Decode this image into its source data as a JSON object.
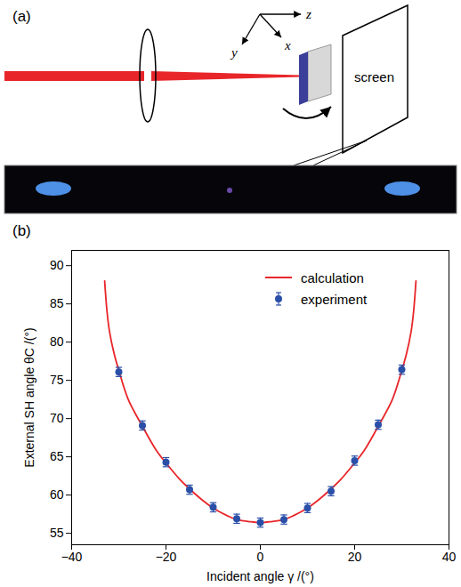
{
  "diagram": {
    "panel_label": "(a)",
    "axes": [
      "x",
      "y",
      "z"
    ],
    "screen_label": "screen"
  },
  "chart_data": {
    "type": "scatter",
    "panel_label": "(b)",
    "x_label": "Incident angle γ /(°)",
    "y_label": "External SH angle θC /(°)",
    "xlim": [
      -40,
      40
    ],
    "xticks": [
      -40,
      -20,
      0,
      20,
      40
    ],
    "ylim": [
      53.5,
      92
    ],
    "yticks": [
      55,
      60,
      65,
      70,
      75,
      80,
      85,
      90
    ],
    "legend": "top-right",
    "series": [
      {
        "name": "calculation",
        "type": "line",
        "color": "#e8262a",
        "x": [
          -33,
          -32.5,
          -32,
          -31,
          -30,
          -28,
          -25,
          -22,
          -20,
          -17,
          -15,
          -12,
          -10,
          -7,
          -5,
          -2,
          0,
          2,
          5,
          7,
          10,
          12,
          15,
          17,
          20,
          22,
          25,
          28,
          30,
          31,
          32,
          32.5,
          33
        ],
        "values": [
          88,
          84,
          81.5,
          78.5,
          76.3,
          72.5,
          69,
          65.8,
          64.2,
          62,
          60.8,
          59.2,
          58.3,
          57.3,
          56.8,
          56.5,
          56.4,
          56.5,
          56.8,
          57.3,
          58.3,
          59.2,
          60.8,
          62,
          64.2,
          65.8,
          69,
          72.5,
          76.3,
          78.5,
          81.5,
          84,
          88
        ]
      },
      {
        "name": "experiment",
        "type": "scatter",
        "color": "#2a4fa8",
        "marker": "circle",
        "x": [
          -30,
          -25,
          -20,
          -15,
          -10,
          -5,
          0,
          5,
          10,
          15,
          20,
          25,
          30
        ],
        "values": [
          76.1,
          69.1,
          64.3,
          60.7,
          58.4,
          56.9,
          56.4,
          56.8,
          58.3,
          60.5,
          64.5,
          69.2,
          76.4
        ],
        "errors": [
          0.6,
          0.6,
          0.6,
          0.6,
          0.6,
          0.6,
          0.6,
          0.6,
          0.6,
          0.6,
          0.6,
          0.6,
          0.6
        ]
      }
    ]
  }
}
